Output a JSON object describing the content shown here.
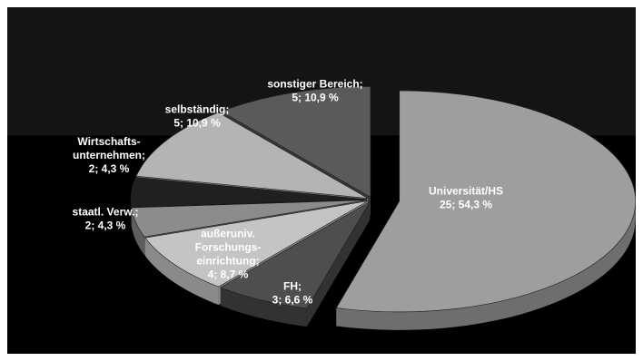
{
  "chart_data": {
    "type": "pie",
    "style": "3d-exploded",
    "slices": [
      {
        "name": "Universität/HS",
        "count": 25,
        "percent": "54,3 %",
        "value": 54.3,
        "color": "#9e9e9e",
        "side": "#6e6e6e"
      },
      {
        "name": "FH;",
        "count": 3,
        "percent": "6,6 %",
        "value": 6.6,
        "color": "#4e4e4e",
        "side": "#323232"
      },
      {
        "name": "außeruniv. Forschungs-einrichtung;",
        "count": 4,
        "percent": "8,7 %",
        "value": 8.7,
        "color": "#c4c4c4",
        "side": "#8a8a8a"
      },
      {
        "name": "staatl. Verw.;",
        "count": 2,
        "percent": "4,3 %",
        "value": 4.3,
        "color": "#8c8c8c",
        "side": "#5e5e5e"
      },
      {
        "name": "Wirtschafts-unternehmen;",
        "count": 2,
        "percent": "4,3 %",
        "value": 4.3,
        "color": "#202020",
        "side": "#101010"
      },
      {
        "name": "selbständig;",
        "count": 5,
        "percent": "10,9 %",
        "value": 10.9,
        "color": "#b4b4b4",
        "side": "#7c7c7c"
      },
      {
        "name": "sonstiger Bereich;",
        "count": 5,
        "percent": "10,9 %",
        "value": 10.9,
        "color": "#5a5a5a",
        "side": "#383838"
      }
    ],
    "labels": [
      {
        "lines": [
          "Universität/HS",
          "25;  54,3 %"
        ]
      },
      {
        "lines": [
          "FH;",
          "3;  6,6 %"
        ]
      },
      {
        "lines": [
          "außeruniv.",
          "Forschungs-",
          "einrichtung;",
          "4;  8,7 %"
        ]
      },
      {
        "lines": [
          "staatl. Verw.;",
          "2;  4,3 %"
        ]
      },
      {
        "lines": [
          "Wirtschafts-",
          "unternehmen;",
          "2;  4,3 %"
        ]
      },
      {
        "lines": [
          "selbständig;",
          "5;  10,9 %"
        ]
      },
      {
        "lines": [
          "sonstiger Bereich;",
          "5;  10,9 %"
        ]
      }
    ],
    "legend": "none"
  }
}
